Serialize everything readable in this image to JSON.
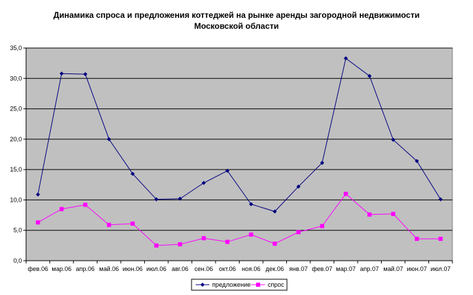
{
  "chart_data": {
    "type": "line",
    "title_line1": "Динамика спроса и предложения коттеджей на рынке аренды загородной недвижимости",
    "title_line2": "Московской области",
    "xlabel": "",
    "ylabel": "",
    "categories": [
      "фев.06",
      "мар.06",
      "апр.06",
      "май.06",
      "июн.06",
      "июл.06",
      "авг.06",
      "сен.06",
      "окт.06",
      "ноя.06",
      "дек.06",
      "янв.07",
      "фев.07",
      "мар.07",
      "апр.07",
      "май.07",
      "июн.07",
      "июл.07"
    ],
    "ylim": [
      0,
      35
    ],
    "yticks": [
      "0,0",
      "5,0",
      "10,0",
      "15,0",
      "20,0",
      "25,0",
      "30,0",
      "35,0"
    ],
    "grid": true,
    "legend_position": "bottom",
    "series": [
      {
        "name": "предложение",
        "color": "#000080",
        "marker": "diamond",
        "values": [
          10.9,
          30.8,
          30.7,
          20.0,
          14.3,
          10.1,
          10.2,
          12.8,
          14.8,
          9.3,
          8.1,
          12.2,
          16.1,
          33.3,
          30.4,
          19.9,
          16.4,
          10.1
        ]
      },
      {
        "name": "спрос",
        "color": "#ff00ff",
        "marker": "square",
        "values": [
          6.3,
          8.5,
          9.2,
          5.9,
          6.1,
          2.5,
          2.7,
          3.7,
          3.1,
          4.3,
          2.8,
          4.7,
          5.7,
          11.0,
          7.6,
          7.7,
          3.6,
          3.6
        ]
      }
    ]
  }
}
